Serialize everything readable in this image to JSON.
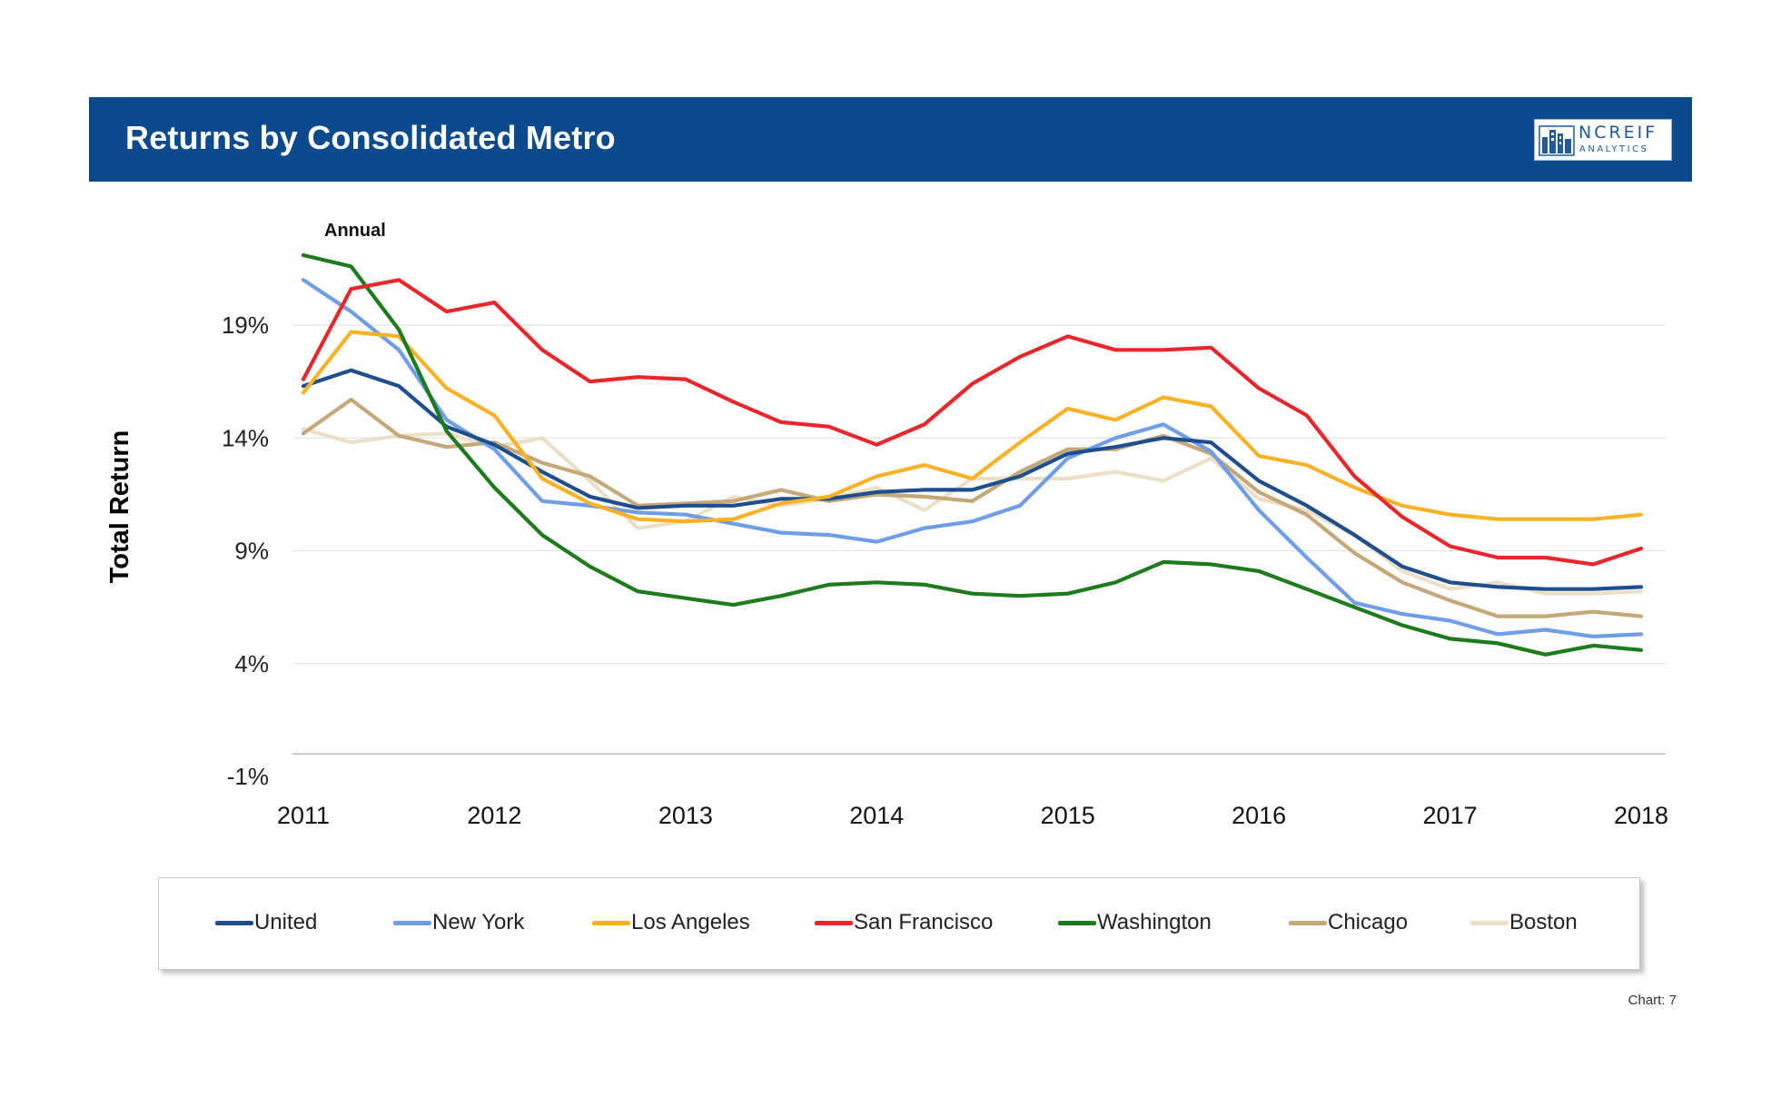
{
  "header": {
    "title": "Returns by Consolidated Metro",
    "logo_line1": "NCREIF",
    "logo_line2": "ANALYTICS"
  },
  "footnote": "Chart: 7",
  "chart_data": {
    "type": "line",
    "title": "Annual",
    "xlabel": "",
    "ylabel": "Total Return",
    "x_tick_labels": [
      "2011",
      "2012",
      "2013",
      "2014",
      "2015",
      "2016",
      "2017",
      "2018"
    ],
    "y_tick_labels": [
      "-1%",
      "4%",
      "9%",
      "14%",
      "19%"
    ],
    "y_ticks": [
      -1,
      4,
      9,
      14,
      19
    ],
    "ylim": [
      -1,
      23.5
    ],
    "xlim": [
      2011,
      2018
    ],
    "grid": true,
    "legend": "bottom",
    "x": [
      2011,
      2011.25,
      2011.5,
      2011.75,
      2012,
      2012.25,
      2012.5,
      2012.75,
      2013,
      2013.25,
      2013.5,
      2013.75,
      2014,
      2014.25,
      2014.5,
      2014.75,
      2015,
      2015.25,
      2015.5,
      2015.75,
      2016,
      2016.25,
      2016.5,
      2016.75,
      2017,
      2017.25,
      2017.5,
      2017.75,
      2018
    ],
    "series": [
      {
        "name": "United",
        "color": "#1f4e8c",
        "values": [
          16.3,
          17.0,
          16.3,
          14.5,
          13.7,
          12.5,
          11.4,
          10.9,
          11.0,
          11.0,
          11.3,
          11.3,
          11.6,
          11.7,
          11.7,
          12.3,
          13.3,
          13.6,
          14.0,
          13.8,
          12.1,
          11.0,
          9.7,
          8.3,
          7.6,
          7.4,
          7.3,
          7.3,
          7.4
        ]
      },
      {
        "name": "New York",
        "color": "#6f9ee6",
        "values": [
          21.0,
          19.6,
          17.9,
          14.8,
          13.5,
          11.2,
          11.0,
          10.7,
          10.6,
          10.2,
          9.8,
          9.7,
          9.4,
          10.0,
          10.3,
          11.0,
          13.1,
          14.0,
          14.6,
          13.4,
          10.8,
          8.7,
          6.7,
          6.2,
          5.9,
          5.3,
          5.5,
          5.2,
          5.3
        ]
      },
      {
        "name": "Los Angeles",
        "color": "#f9b126",
        "values": [
          16.0,
          18.7,
          18.5,
          16.2,
          15.0,
          12.2,
          11.1,
          10.4,
          10.3,
          10.4,
          11.1,
          11.4,
          12.3,
          12.8,
          12.2,
          13.8,
          15.3,
          14.8,
          15.8,
          15.4,
          13.2,
          12.8,
          11.8,
          11.0,
          10.6,
          10.4,
          10.4,
          10.4,
          10.6
        ]
      },
      {
        "name": "San Francisco",
        "color": "#e8262b",
        "values": [
          16.6,
          20.6,
          21.0,
          19.6,
          20.0,
          17.9,
          16.5,
          16.7,
          16.6,
          15.6,
          14.7,
          14.5,
          13.7,
          14.6,
          16.4,
          17.6,
          18.5,
          17.9,
          17.9,
          18.0,
          16.2,
          15.0,
          12.3,
          10.5,
          9.2,
          8.7,
          8.7,
          8.4,
          9.1
        ]
      },
      {
        "name": "Washington",
        "color": "#1d7a1d",
        "values": [
          22.1,
          21.6,
          18.8,
          14.3,
          11.8,
          9.7,
          8.3,
          7.2,
          6.9,
          6.6,
          7.0,
          7.5,
          7.6,
          7.5,
          7.1,
          7.0,
          7.1,
          7.6,
          8.5,
          8.4,
          8.1,
          7.3,
          6.5,
          5.7,
          5.1,
          4.9,
          4.4,
          4.8,
          4.6
        ]
      },
      {
        "name": "Chicago",
        "color": "#c4a87a",
        "values": [
          14.2,
          15.7,
          14.1,
          13.6,
          13.8,
          12.9,
          12.3,
          11.0,
          11.1,
          11.2,
          11.7,
          11.2,
          11.5,
          11.4,
          11.2,
          12.5,
          13.5,
          13.5,
          14.1,
          13.3,
          11.6,
          10.6,
          8.9,
          7.6,
          6.8,
          6.1,
          6.1,
          6.3,
          6.1
        ]
      },
      {
        "name": "Boston",
        "color": "#ecdfc8",
        "values": [
          14.4,
          13.8,
          14.1,
          14.2,
          13.6,
          14.0,
          12.1,
          10.0,
          10.3,
          11.4,
          11.0,
          11.3,
          11.8,
          10.8,
          12.2,
          12.2,
          12.2,
          12.5,
          12.1,
          13.1,
          11.3,
          10.8,
          9.7,
          8.1,
          7.3,
          7.6,
          7.1,
          7.1,
          7.2
        ]
      }
    ]
  }
}
